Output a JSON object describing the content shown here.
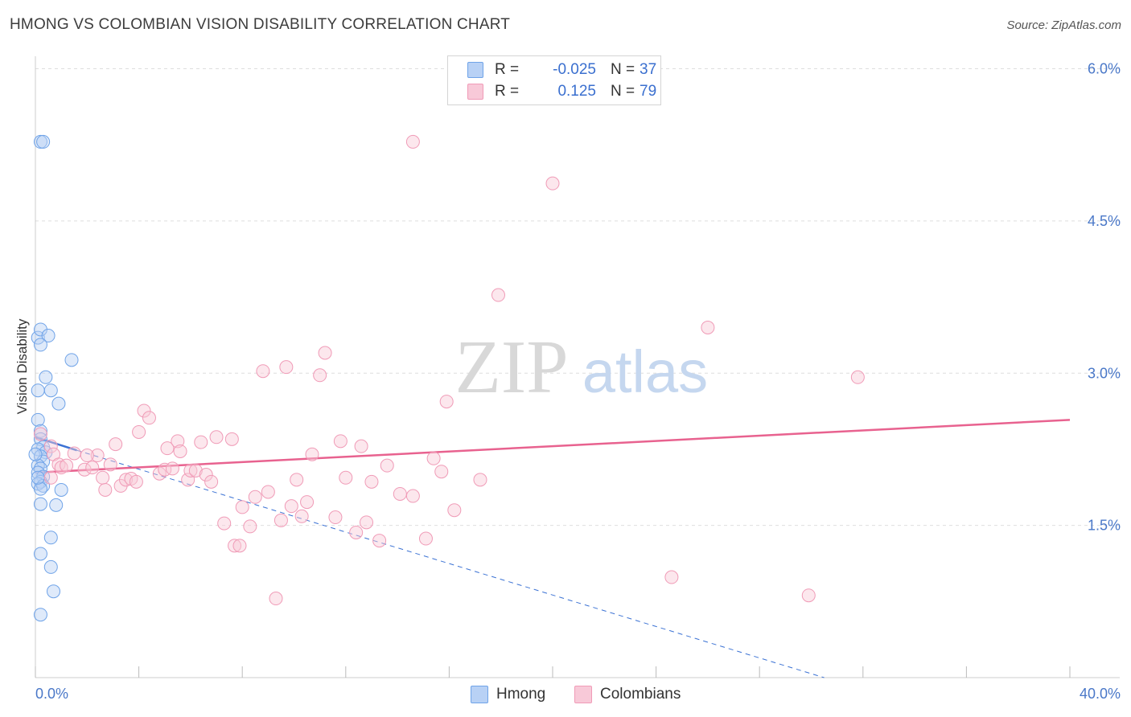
{
  "header": {
    "title": "HMONG VS COLOMBIAN VISION DISABILITY CORRELATION CHART",
    "source": "Source: ZipAtlas.com"
  },
  "legend": {
    "hmong": {
      "r_label": "R =",
      "r_value": "-0.025",
      "n_label": "N =",
      "n_value": "37"
    },
    "colombians": {
      "r_label": "R =",
      "r_value": "0.125",
      "n_label": "N =",
      "n_value": "79"
    }
  },
  "watermark": {
    "zip": "ZIP",
    "atlas": "atlas"
  },
  "chart_data": {
    "type": "scatter",
    "title": "HMONG VS COLOMBIAN VISION DISABILITY CORRELATION CHART",
    "ylabel": "Vision Disability",
    "xlabel": "",
    "xlim": [
      0,
      40
    ],
    "ylim": [
      0,
      6.2
    ],
    "x_tick_labels": [
      {
        "value": 0,
        "label": "0.0%"
      },
      {
        "value": 40,
        "label": "40.0%"
      }
    ],
    "x_minor_ticks": [
      0,
      4,
      8,
      12,
      16,
      20,
      24,
      28,
      32,
      36,
      40
    ],
    "y_ticks": [
      {
        "value": 1.5,
        "label": "1.5%"
      },
      {
        "value": 3.0,
        "label": "3.0%"
      },
      {
        "value": 4.5,
        "label": "4.5%"
      },
      {
        "value": 6.0,
        "label": "6.0%"
      }
    ],
    "grid": true,
    "series": [
      {
        "name": "Hmong",
        "color": "#6fa3e8",
        "fill": "#b8d1f5",
        "trend_color": "#3b72d4",
        "trend_solid": {
          "x": [
            0,
            1.6
          ],
          "y": [
            2.37,
            2.24
          ]
        },
        "trend_dashed": {
          "x": [
            1.6,
            30.5
          ],
          "y": [
            2.24,
            0.0
          ]
        },
        "points": [
          [
            0.2,
            5.28
          ],
          [
            0.3,
            5.28
          ],
          [
            0.1,
            3.35
          ],
          [
            0.2,
            3.43
          ],
          [
            0.5,
            3.37
          ],
          [
            1.4,
            3.13
          ],
          [
            0.2,
            3.28
          ],
          [
            0.4,
            2.96
          ],
          [
            0.1,
            2.83
          ],
          [
            0.6,
            2.83
          ],
          [
            0.9,
            2.7
          ],
          [
            0.1,
            2.54
          ],
          [
            0.2,
            2.43
          ],
          [
            0.2,
            2.35
          ],
          [
            0.3,
            2.27
          ],
          [
            0.1,
            2.25
          ],
          [
            0.4,
            2.22
          ],
          [
            0.2,
            2.18
          ],
          [
            0.3,
            2.13
          ],
          [
            0.1,
            2.09
          ],
          [
            0.2,
            2.06
          ],
          [
            0.1,
            2.02
          ],
          [
            0.3,
            1.98
          ],
          [
            0.2,
            1.93
          ],
          [
            0.1,
            1.91
          ],
          [
            0.3,
            1.89
          ],
          [
            0.2,
            1.86
          ],
          [
            1.0,
            1.85
          ],
          [
            0.2,
            1.71
          ],
          [
            0.8,
            1.7
          ],
          [
            0.6,
            1.38
          ],
          [
            0.2,
            1.22
          ],
          [
            0.6,
            1.09
          ],
          [
            0.7,
            0.85
          ],
          [
            0.2,
            0.62
          ],
          [
            0.0,
            2.2
          ],
          [
            0.1,
            1.97
          ]
        ]
      },
      {
        "name": "Colombians",
        "color": "#f09bb7",
        "fill": "#f8c9d8",
        "trend_color": "#e8628f",
        "trend_solid": {
          "x": [
            0,
            40
          ],
          "y": [
            2.02,
            2.54
          ]
        },
        "points": [
          [
            0.2,
            2.4
          ],
          [
            0.6,
            2.28
          ],
          [
            0.7,
            2.2
          ],
          [
            0.9,
            2.1
          ],
          [
            0.6,
            1.97
          ],
          [
            1.5,
            2.21
          ],
          [
            1.0,
            2.07
          ],
          [
            1.9,
            2.05
          ],
          [
            2.2,
            2.07
          ],
          [
            2.4,
            2.19
          ],
          [
            2.6,
            1.97
          ],
          [
            2.7,
            1.85
          ],
          [
            2.9,
            2.1
          ],
          [
            3.1,
            2.3
          ],
          [
            3.3,
            1.89
          ],
          [
            3.5,
            1.95
          ],
          [
            3.7,
            1.96
          ],
          [
            3.9,
            1.93
          ],
          [
            4.0,
            2.42
          ],
          [
            4.2,
            2.63
          ],
          [
            4.4,
            2.56
          ],
          [
            4.8,
            2.01
          ],
          [
            5.0,
            2.05
          ],
          [
            5.1,
            2.26
          ],
          [
            5.3,
            2.06
          ],
          [
            5.5,
            2.33
          ],
          [
            5.6,
            2.23
          ],
          [
            5.9,
            1.95
          ],
          [
            6.0,
            2.04
          ],
          [
            6.2,
            2.04
          ],
          [
            6.4,
            2.32
          ],
          [
            6.6,
            2.0
          ],
          [
            6.8,
            1.93
          ],
          [
            7.0,
            2.37
          ],
          [
            7.3,
            1.52
          ],
          [
            7.6,
            2.35
          ],
          [
            7.7,
            1.3
          ],
          [
            7.9,
            1.3
          ],
          [
            8.0,
            1.68
          ],
          [
            8.3,
            1.49
          ],
          [
            8.5,
            1.78
          ],
          [
            8.8,
            3.02
          ],
          [
            9.0,
            1.83
          ],
          [
            9.3,
            0.78
          ],
          [
            9.5,
            1.55
          ],
          [
            9.7,
            3.06
          ],
          [
            9.9,
            1.69
          ],
          [
            10.1,
            1.95
          ],
          [
            10.3,
            1.59
          ],
          [
            10.5,
            1.73
          ],
          [
            10.7,
            2.2
          ],
          [
            11.0,
            2.98
          ],
          [
            11.2,
            3.2
          ],
          [
            11.6,
            1.58
          ],
          [
            11.8,
            2.33
          ],
          [
            12.0,
            1.97
          ],
          [
            12.4,
            1.43
          ],
          [
            12.6,
            2.28
          ],
          [
            12.8,
            1.53
          ],
          [
            13.0,
            1.93
          ],
          [
            13.3,
            1.35
          ],
          [
            13.6,
            2.09
          ],
          [
            14.1,
            1.81
          ],
          [
            14.6,
            1.79
          ],
          [
            14.6,
            5.28
          ],
          [
            15.1,
            1.37
          ],
          [
            15.4,
            2.16
          ],
          [
            15.7,
            2.03
          ],
          [
            15.9,
            2.72
          ],
          [
            16.2,
            1.65
          ],
          [
            17.2,
            1.95
          ],
          [
            17.9,
            3.77
          ],
          [
            20.0,
            4.87
          ],
          [
            24.6,
            0.99
          ],
          [
            26.0,
            3.45
          ],
          [
            29.9,
            0.81
          ],
          [
            31.8,
            2.96
          ],
          [
            2.0,
            2.19
          ],
          [
            1.2,
            2.09
          ]
        ]
      }
    ]
  }
}
